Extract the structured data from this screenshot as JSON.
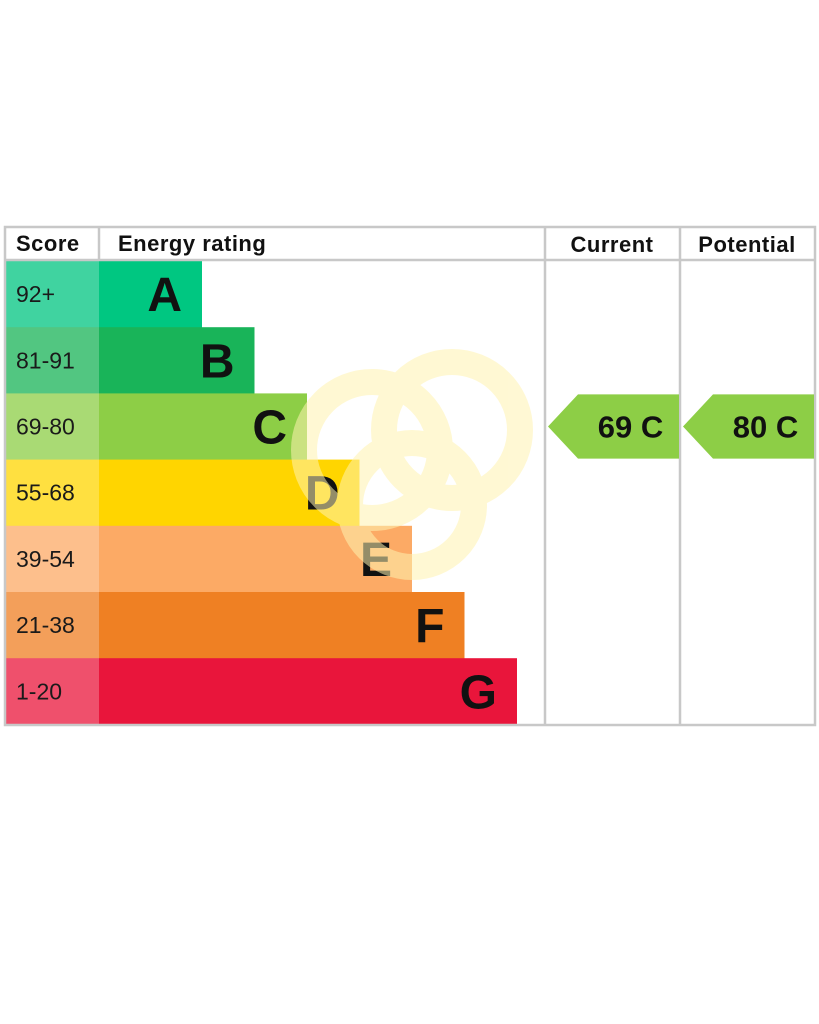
{
  "table": {
    "headers": {
      "score": "Score",
      "energy_rating": "Energy rating",
      "current": "Current",
      "potential": "Potential"
    }
  },
  "chart_data": {
    "type": "bar",
    "title": "",
    "categories": [
      "92+",
      "81-91",
      "69-80",
      "55-68",
      "39-54",
      "21-38",
      "1-20"
    ],
    "bands": [
      {
        "score": "92+",
        "letter": "A",
        "color": "#00c781",
        "score_bg": "#40d3a0"
      },
      {
        "score": "81-91",
        "letter": "B",
        "color": "#19b459",
        "score_bg": "#52c681"
      },
      {
        "score": "69-80",
        "letter": "C",
        "color": "#8dce46",
        "score_bg": "#a9da74"
      },
      {
        "score": "55-68",
        "letter": "D",
        "color": "#ffd500",
        "score_bg": "#ffe040"
      },
      {
        "score": "39-54",
        "letter": "E",
        "color": "#fcaa65",
        "score_bg": "#fdbf8c"
      },
      {
        "score": "21-38",
        "letter": "F",
        "color": "#ef8023",
        "score_bg": "#f39f5a"
      },
      {
        "score": "1-20",
        "letter": "G",
        "color": "#e9153b",
        "score_bg": "#ef506c"
      }
    ],
    "current": {
      "value": 69,
      "band": "C",
      "label": "69 C",
      "color": "#8dce46"
    },
    "potential": {
      "value": 80,
      "band": "C",
      "label": "80 C",
      "color": "#8dce46"
    },
    "watermark_color": "#fff3b0"
  }
}
